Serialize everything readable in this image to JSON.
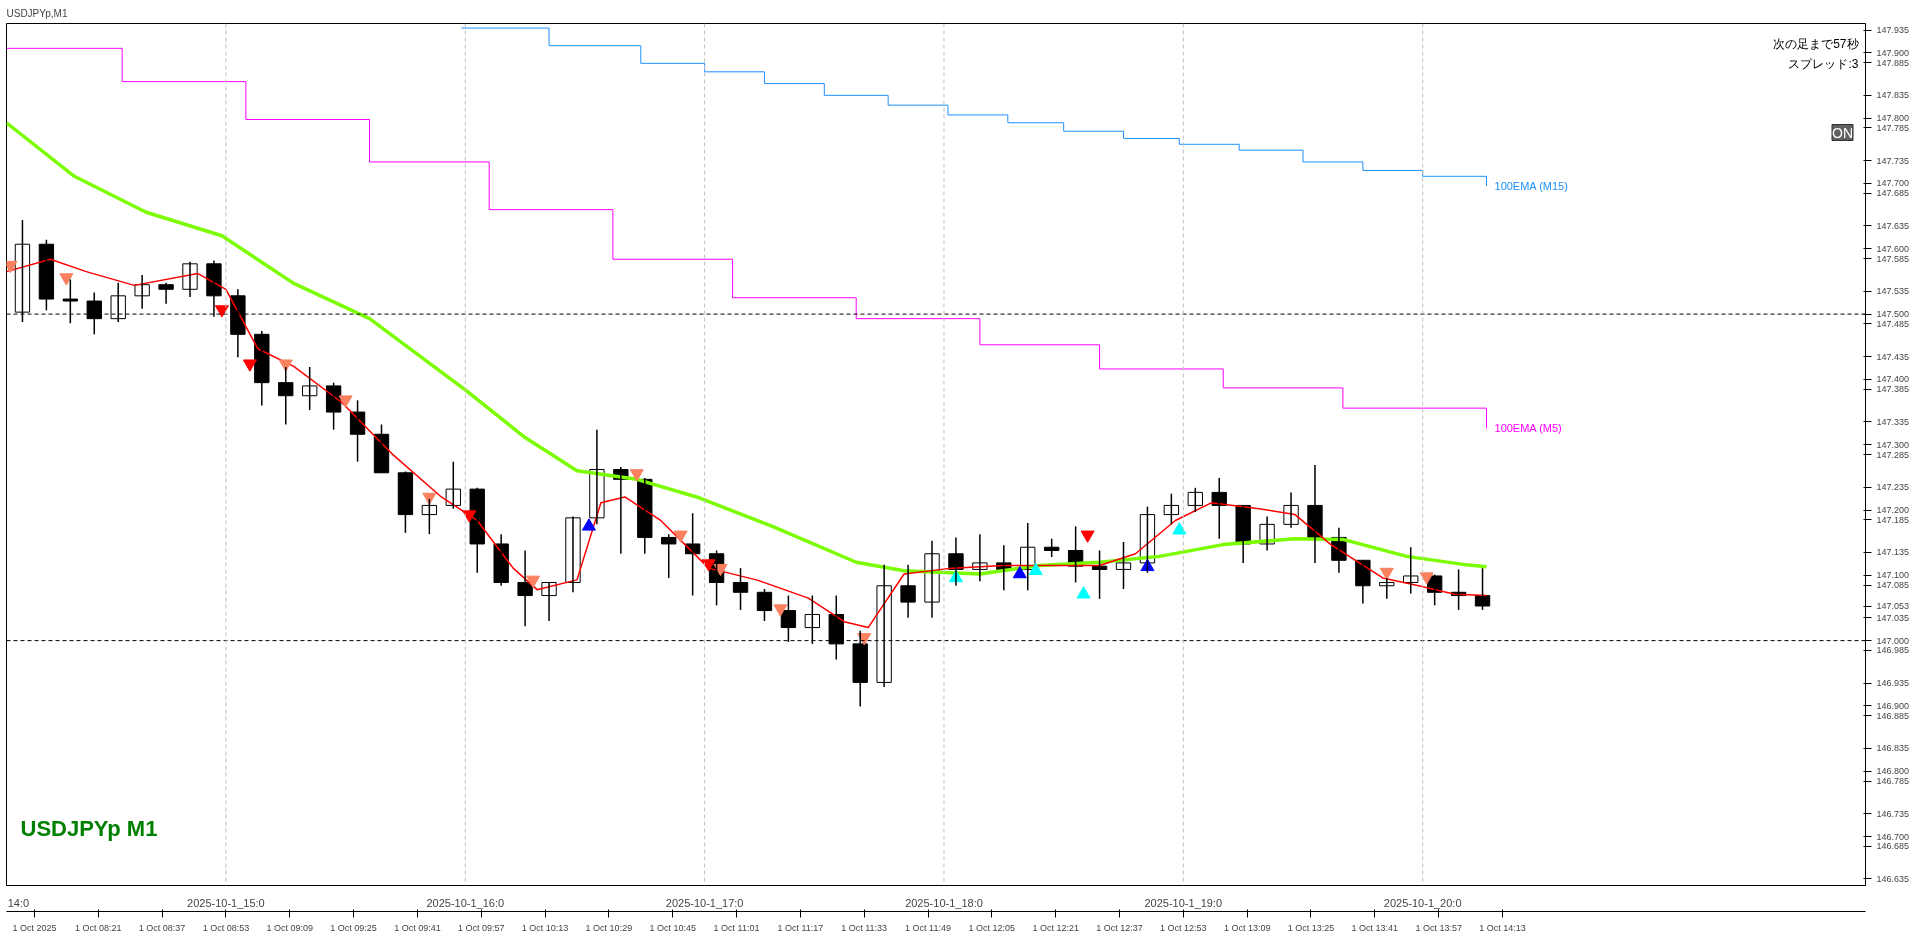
{
  "chart_data": {
    "type": "candlestick",
    "title": "USDJPYp,M1",
    "x": [
      "2025-10-01T14:09",
      "2025-10-01T14:15",
      "2025-10-01T14:21",
      "2025-10-01T14:27",
      "2025-10-01T14:33",
      "2025-10-01T14:39",
      "2025-10-01T14:45",
      "2025-10-01T14:51",
      "2025-10-01T14:57",
      "2025-10-01T15:03",
      "2025-10-01T15:09",
      "2025-10-01T15:15",
      "2025-10-01T15:21",
      "2025-10-01T15:27",
      "2025-10-01T15:33",
      "2025-10-01T15:39",
      "2025-10-01T15:45",
      "2025-10-01T15:51",
      "2025-10-01T15:57",
      "2025-10-01T16:03",
      "2025-10-01T16:09",
      "2025-10-01T16:15",
      "2025-10-01T16:21",
      "2025-10-01T16:27",
      "2025-10-01T16:33",
      "2025-10-01T16:39",
      "2025-10-01T16:45",
      "2025-10-01T16:51",
      "2025-10-01T16:57",
      "2025-10-01T17:03",
      "2025-10-01T17:09",
      "2025-10-01T17:15",
      "2025-10-01T17:21",
      "2025-10-01T17:27",
      "2025-10-01T17:33",
      "2025-10-01T17:39",
      "2025-10-01T17:45",
      "2025-10-01T17:51",
      "2025-10-01T17:57",
      "2025-10-01T18:03",
      "2025-10-01T18:09",
      "2025-10-01T18:15",
      "2025-10-01T18:21",
      "2025-10-01T18:27",
      "2025-10-01T18:33",
      "2025-10-01T18:39",
      "2025-10-01T18:45",
      "2025-10-01T18:51",
      "2025-10-01T18:57",
      "2025-10-01T19:03",
      "2025-10-01T19:09",
      "2025-10-01T19:15",
      "2025-10-01T19:21",
      "2025-10-01T19:27",
      "2025-10-01T19:33",
      "2025-10-01T19:39",
      "2025-10-01T19:45",
      "2025-10-01T19:51",
      "2025-10-01T19:57",
      "2025-10-01T20:03",
      "2025-10-01T20:09",
      "2025-10-01T20:15"
    ],
    "ohlc": [
      [
        147.503,
        147.644,
        147.488,
        147.607
      ],
      [
        147.607,
        147.614,
        147.506,
        147.523
      ],
      [
        147.523,
        147.553,
        147.486,
        147.52
      ],
      [
        147.52,
        147.533,
        147.469,
        147.493
      ],
      [
        147.493,
        147.548,
        147.488,
        147.528
      ],
      [
        147.528,
        147.56,
        147.508,
        147.545
      ],
      [
        147.545,
        147.548,
        147.516,
        147.538
      ],
      [
        147.538,
        147.58,
        147.526,
        147.577
      ],
      [
        147.577,
        147.582,
        147.496,
        147.528
      ],
      [
        147.528,
        147.538,
        147.434,
        147.469
      ],
      [
        147.469,
        147.474,
        147.36,
        147.395
      ],
      [
        147.395,
        147.419,
        147.331,
        147.375
      ],
      [
        147.375,
        147.419,
        147.353,
        147.39
      ],
      [
        147.39,
        147.395,
        147.323,
        147.35
      ],
      [
        147.35,
        147.368,
        147.274,
        147.316
      ],
      [
        147.316,
        147.331,
        147.257,
        147.257
      ],
      [
        147.257,
        147.259,
        147.165,
        147.193
      ],
      [
        147.193,
        147.217,
        147.163,
        147.207
      ],
      [
        147.207,
        147.274,
        147.202,
        147.232
      ],
      [
        147.232,
        147.234,
        147.104,
        147.148
      ],
      [
        147.148,
        147.163,
        147.084,
        147.089
      ],
      [
        147.089,
        147.138,
        147.022,
        147.069
      ],
      [
        147.069,
        147.089,
        147.03,
        147.089
      ],
      [
        147.089,
        147.19,
        147.074,
        147.188
      ],
      [
        147.188,
        147.323,
        147.178,
        147.262
      ],
      [
        147.262,
        147.266,
        147.133,
        147.247
      ],
      [
        147.247,
        147.249,
        147.133,
        147.158
      ],
      [
        147.158,
        147.163,
        147.096,
        147.148
      ],
      [
        147.148,
        147.195,
        147.069,
        147.133
      ],
      [
        147.133,
        147.138,
        147.054,
        147.089
      ],
      [
        147.089,
        147.111,
        147.047,
        147.074
      ],
      [
        147.074,
        147.079,
        147.03,
        147.046
      ],
      [
        147.046,
        147.069,
        146.998,
        147.02
      ],
      [
        147.02,
        147.069,
        146.995,
        147.04
      ],
      [
        147.04,
        147.069,
        146.971,
        146.995
      ],
      [
        146.995,
        147.015,
        146.899,
        146.936
      ],
      [
        146.936,
        147.116,
        146.929,
        147.084
      ],
      [
        147.084,
        147.116,
        147.035,
        147.059
      ],
      [
        147.059,
        147.153,
        147.035,
        147.133
      ],
      [
        147.133,
        147.158,
        147.084,
        147.109
      ],
      [
        147.109,
        147.163,
        147.091,
        147.119
      ],
      [
        147.119,
        147.146,
        147.077,
        147.109
      ],
      [
        147.109,
        147.18,
        147.077,
        147.143
      ],
      [
        147.143,
        147.156,
        147.128,
        147.138
      ],
      [
        147.138,
        147.175,
        147.089,
        147.114
      ],
      [
        147.114,
        147.138,
        147.064,
        147.109
      ],
      [
        147.109,
        147.151,
        147.079,
        147.119
      ],
      [
        147.119,
        147.205,
        147.104,
        147.193
      ],
      [
        147.193,
        147.225,
        147.178,
        147.207
      ],
      [
        147.207,
        147.234,
        147.197,
        147.227
      ],
      [
        147.227,
        147.249,
        147.156,
        147.207
      ],
      [
        147.207,
        147.207,
        147.119,
        147.148
      ],
      [
        147.148,
        147.19,
        147.138,
        147.178
      ],
      [
        147.178,
        147.227,
        147.173,
        147.207
      ],
      [
        147.207,
        147.269,
        147.119,
        147.158
      ],
      [
        147.158,
        147.173,
        147.104,
        147.123
      ],
      [
        147.123,
        147.123,
        147.057,
        147.084
      ],
      [
        147.084,
        147.096,
        147.064,
        147.089
      ],
      [
        147.089,
        147.143,
        147.072,
        147.099
      ],
      [
        147.099,
        147.101,
        147.054,
        147.074
      ],
      [
        147.074,
        147.109,
        147.047,
        147.069
      ],
      [
        147.069,
        147.111,
        147.047,
        147.053
      ]
    ],
    "series": [
      {
        "type": "step",
        "name": "100EMA (M15)",
        "color": "#1e90ff",
        "x": [
          "2025-10-01T15:59",
          "2025-10-01T16:21",
          "2025-10-01T16:44",
          "2025-10-01T17:00",
          "2025-10-01T17:15",
          "2025-10-01T17:30",
          "2025-10-01T17:46",
          "2025-10-01T18:01",
          "2025-10-01T18:16",
          "2025-10-01T18:30",
          "2025-10-01T18:45",
          "2025-10-01T18:59",
          "2025-10-01T19:14",
          "2025-10-01T19:30",
          "2025-10-01T19:45",
          "2025-10-01T20:00",
          "2025-10-01T20:16"
        ],
        "values": [
          147.938,
          147.911,
          147.884,
          147.871,
          147.853,
          147.835,
          147.82,
          147.805,
          147.793,
          147.78,
          147.769,
          147.76,
          147.751,
          147.733,
          147.72,
          147.711,
          147.696
        ]
      },
      {
        "type": "step",
        "name": "100EMA (M5)",
        "color": "#ff00ff",
        "x": [
          "2025-10-01T14:05",
          "2025-10-01T14:34",
          "2025-10-01T15:05",
          "2025-10-01T15:36",
          "2025-10-01T16:06",
          "2025-10-01T16:37",
          "2025-10-01T17:07",
          "2025-10-01T17:38",
          "2025-10-01T18:09",
          "2025-10-01T18:39",
          "2025-10-01T19:10",
          "2025-10-01T19:40",
          "2025-10-01T20:16"
        ],
        "values": [
          147.907,
          147.856,
          147.798,
          147.733,
          147.66,
          147.584,
          147.525,
          147.493,
          147.453,
          147.416,
          147.387,
          147.356,
          147.325
        ]
      },
      {
        "type": "line",
        "color": "#7cfc00",
        "x": [
          "2025-10-01T14:05",
          "2025-10-01T14:22",
          "2025-10-01T14:40",
          "2025-10-01T14:59",
          "2025-10-01T15:17",
          "2025-10-01T15:36",
          "2025-10-01T16:00",
          "2025-10-01T16:15",
          "2025-10-01T16:28",
          "2025-10-01T16:43",
          "2025-10-01T16:58",
          "2025-10-01T17:17",
          "2025-10-01T17:38",
          "2025-10-01T17:50",
          "2025-10-01T18:09",
          "2025-10-01T18:24",
          "2025-10-01T18:39",
          "2025-10-01T18:54",
          "2025-10-01T19:10",
          "2025-10-01T19:28",
          "2025-10-01T19:40",
          "2025-10-01T19:56",
          "2025-10-01T20:11",
          "2025-10-01T20:16"
        ],
        "values": [
          147.793,
          147.711,
          147.656,
          147.62,
          147.547,
          147.493,
          147.384,
          147.311,
          147.26,
          147.247,
          147.22,
          147.175,
          147.12,
          147.107,
          147.102,
          147.115,
          147.12,
          147.129,
          147.147,
          147.156,
          147.155,
          147.129,
          147.116,
          147.113
        ]
      },
      {
        "type": "line",
        "color": "#ff0000",
        "x": [
          "2025-10-01T14:05",
          "2025-10-01T14:16",
          "2025-10-01T14:25",
          "2025-10-01T14:37",
          "2025-10-01T14:53",
          "2025-10-01T15:00",
          "2025-10-01T15:08",
          "2025-10-01T15:17",
          "2025-10-01T15:29",
          "2025-10-01T15:42",
          "2025-10-01T15:54",
          "2025-10-01T16:03",
          "2025-10-01T16:12",
          "2025-10-01T16:18",
          "2025-10-01T16:28",
          "2025-10-01T16:34",
          "2025-10-01T16:40",
          "2025-10-01T16:49",
          "2025-10-01T17:01",
          "2025-10-01T17:13",
          "2025-10-01T17:26",
          "2025-10-01T17:35",
          "2025-10-01T17:41",
          "2025-10-01T17:50",
          "2025-10-01T18:02",
          "2025-10-01T18:15",
          "2025-10-01T18:27",
          "2025-10-01T18:39",
          "2025-10-01T18:48",
          "2025-10-01T18:58",
          "2025-10-01T19:07",
          "2025-10-01T19:19",
          "2025-10-01T19:28",
          "2025-10-01T19:37",
          "2025-10-01T19:50",
          "2025-10-01T19:59",
          "2025-10-01T20:08",
          "2025-10-01T20:16"
        ],
        "values": [
          147.565,
          147.584,
          147.565,
          147.544,
          147.562,
          147.538,
          147.447,
          147.42,
          147.365,
          147.284,
          147.22,
          147.184,
          147.111,
          147.078,
          147.093,
          147.211,
          147.22,
          147.184,
          147.111,
          147.093,
          147.065,
          147.029,
          147.02,
          147.102,
          147.111,
          147.115,
          147.115,
          147.115,
          147.133,
          147.184,
          147.211,
          147.202,
          147.193,
          147.147,
          147.096,
          147.084,
          147.071,
          147.069
        ]
      },
      {
        "type": "scatter",
        "color": "#fa8060",
        "x": [
          "2025-10-01T14:06",
          "2025-10-01T14:20",
          "2025-10-01T15:15",
          "2025-10-01T15:30",
          "2025-10-01T15:51",
          "2025-10-01T16:17",
          "2025-10-01T16:43",
          "2025-10-01T16:54",
          "2025-10-01T17:04",
          "2025-10-01T17:19",
          "2025-10-01T17:40",
          "2025-10-01T19:51",
          "2025-10-01T20:01"
        ],
        "values": [
          147.575,
          147.556,
          147.424,
          147.369,
          147.22,
          147.093,
          147.256,
          147.162,
          147.111,
          147.049,
          147.005,
          147.105,
          147.098
        ]
      },
      {
        "type": "scatter",
        "color": "#ff0000",
        "x": [
          "2025-10-01T14:59",
          "2025-10-01T15:06",
          "2025-10-01T16:01",
          "2025-10-01T17:01",
          "2025-10-01T18:36"
        ],
        "values": [
          147.507,
          147.424,
          147.193,
          147.118,
          147.162
        ]
      },
      {
        "type": "scatter",
        "marker": "triangle",
        "color": "#0000ff",
        "x": [
          "2025-10-01T16:31",
          "2025-10-01T18:19",
          "2025-10-01T18:51"
        ],
        "values": [
          147.175,
          147.102,
          147.113
        ]
      },
      {
        "type": "scatter",
        "marker": "triangle",
        "color": "#00ffff",
        "x": [
          "2025-10-01T18:03",
          "2025-10-01T18:23",
          "2025-10-01T18:35",
          "2025-10-01T18:59"
        ],
        "values": [
          147.096,
          147.107,
          147.071,
          147.169
        ]
      }
    ],
    "xlim": [
      "2025-10-01T14:05",
      "2025-10-01T21:51"
    ],
    "xticks": [
      {
        "value": "2025-10-01T14:08",
        "label": "14:0"
      },
      {
        "value": "2025-10-01T15:00",
        "label": "2025-10-1_15:0"
      },
      {
        "value": "2025-10-01T16:00",
        "label": "2025-10-1_16:0"
      },
      {
        "value": "2025-10-01T17:00",
        "label": "2025-10-1_17:0"
      },
      {
        "value": "2025-10-01T18:00",
        "label": "2025-10-1_18:0"
      },
      {
        "value": "2025-10-01T19:00",
        "label": "2025-10-1_19:0"
      },
      {
        "value": "2025-10-01T20:00",
        "label": "2025-10-1_20:0"
      }
    ],
    "x2lim": [
      "2025-10-01T07:58",
      "2025-10-01T15:44"
    ],
    "x2ticks": [
      {
        "value": "2025-10-01T08:05",
        "label": "1 Oct 2025"
      },
      {
        "value": "2025-10-01T08:21",
        "label": "1 Oct 08:21"
      },
      {
        "value": "2025-10-01T08:37",
        "label": "1 Oct 08:37"
      },
      {
        "value": "2025-10-01T08:53",
        "label": "1 Oct 08:53"
      },
      {
        "value": "2025-10-01T09:09",
        "label": "1 Oct 09:09"
      },
      {
        "value": "2025-10-01T09:25",
        "label": "1 Oct 09:25"
      },
      {
        "value": "2025-10-01T09:41",
        "label": "1 Oct 09:41"
      },
      {
        "value": "2025-10-01T09:57",
        "label": "1 Oct 09:57"
      },
      {
        "value": "2025-10-01T10:13",
        "label": "1 Oct 10:13"
      },
      {
        "value": "2025-10-01T10:29",
        "label": "1 Oct 10:29"
      },
      {
        "value": "2025-10-01T10:45",
        "label": "1 Oct 10:45"
      },
      {
        "value": "2025-10-01T11:01",
        "label": "1 Oct 11:01"
      },
      {
        "value": "2025-10-01T11:17",
        "label": "1 Oct 11:17"
      },
      {
        "value": "2025-10-01T11:33",
        "label": "1 Oct 11:33"
      },
      {
        "value": "2025-10-01T11:49",
        "label": "1 Oct 11:49"
      },
      {
        "value": "2025-10-01T12:05",
        "label": "1 Oct 12:05"
      },
      {
        "value": "2025-10-01T12:21",
        "label": "1 Oct 12:21"
      },
      {
        "value": "2025-10-01T12:37",
        "label": "1 Oct 12:37"
      },
      {
        "value": "2025-10-01T12:53",
        "label": "1 Oct 12:53"
      },
      {
        "value": "2025-10-01T13:09",
        "label": "1 Oct 13:09"
      },
      {
        "value": "2025-10-01T13:25",
        "label": "1 Oct 13:25"
      },
      {
        "value": "2025-10-01T13:41",
        "label": "1 Oct 13:41"
      },
      {
        "value": "2025-10-01T13:57",
        "label": "1 Oct 13:57"
      },
      {
        "value": "2025-10-01T14:13",
        "label": "1 Oct 14:13"
      }
    ],
    "ylim": [
      146.625,
      147.945
    ],
    "yticks": [
      {
        "value": 147.935,
        "label": "147.935"
      },
      {
        "value": 147.9,
        "label": "147.900"
      },
      {
        "value": 147.885,
        "label": "147.885"
      },
      {
        "value": 147.835,
        "label": "147.835"
      },
      {
        "value": 147.8,
        "label": "147.800"
      },
      {
        "value": 147.785,
        "label": "147.785"
      },
      {
        "value": 147.735,
        "label": "147.735"
      },
      {
        "value": 147.7,
        "label": "147.700"
      },
      {
        "value": 147.685,
        "label": "147.685"
      },
      {
        "value": 147.635,
        "label": "147.635"
      },
      {
        "value": 147.6,
        "label": "147.600"
      },
      {
        "value": 147.585,
        "label": "147.585"
      },
      {
        "value": 147.535,
        "label": "147.535"
      },
      {
        "value": 147.5,
        "label": "147.500"
      },
      {
        "value": 147.485,
        "label": "147.485"
      },
      {
        "value": 147.435,
        "label": "147.435"
      },
      {
        "value": 147.4,
        "label": "147.400"
      },
      {
        "value": 147.385,
        "label": "147.385"
      },
      {
        "value": 147.335,
        "label": "147.335"
      },
      {
        "value": 147.3,
        "label": "147.300"
      },
      {
        "value": 147.285,
        "label": "147.285"
      },
      {
        "value": 147.235,
        "label": "147.235"
      },
      {
        "value": 147.2,
        "label": "147.200"
      },
      {
        "value": 147.185,
        "label": "147.185"
      },
      {
        "value": 147.135,
        "label": "147.135"
      },
      {
        "value": 147.1,
        "label": "147.100"
      },
      {
        "value": 147.085,
        "label": "147.085"
      },
      {
        "value": 147.053,
        "label": "147.053"
      },
      {
        "value": 147.035,
        "label": "147.035"
      },
      {
        "value": 147.0,
        "label": "147.000"
      },
      {
        "value": 146.985,
        "label": "146.985"
      },
      {
        "value": 146.935,
        "label": "146.935"
      },
      {
        "value": 146.9,
        "label": "146.900"
      },
      {
        "value": 146.885,
        "label": "146.885"
      },
      {
        "value": 146.835,
        "label": "146.835"
      },
      {
        "value": 146.8,
        "label": "146.800"
      },
      {
        "value": 146.785,
        "label": "146.785"
      },
      {
        "value": 146.735,
        "label": "146.735"
      },
      {
        "value": 146.7,
        "label": "146.700"
      },
      {
        "value": 146.685,
        "label": "146.685"
      },
      {
        "value": 146.635,
        "label": "146.635"
      }
    ],
    "ref_lines": [
      {
        "axis": "y",
        "value": 147.5,
        "color": "#000000",
        "line_style": "dashed"
      },
      {
        "axis": "y",
        "value": 147.0,
        "color": "#000000",
        "line_style": "dashed"
      },
      {
        "axis": "x",
        "value": "2025-10-01T15:00",
        "color": "#c0c0c0",
        "line_style": "dashed"
      },
      {
        "axis": "x",
        "value": "2025-10-01T16:00",
        "color": "#c0c0c0",
        "line_style": "dashed"
      },
      {
        "axis": "x",
        "value": "2025-10-01T17:00",
        "color": "#c0c0c0",
        "line_style": "dashed"
      },
      {
        "axis": "x",
        "value": "2025-10-01T18:00",
        "color": "#c0c0c0",
        "line_style": "dashed"
      },
      {
        "axis": "x",
        "value": "2025-10-01T19:00",
        "color": "#c0c0c0",
        "line_style": "dashed"
      },
      {
        "axis": "x",
        "value": "2025-10-01T20:00",
        "color": "#c0c0c0",
        "line_style": "dashed"
      }
    ],
    "annotations": [
      "USDJPYp M1",
      "次の足まで57秒",
      "スプレッド:3",
      "ON"
    ]
  }
}
